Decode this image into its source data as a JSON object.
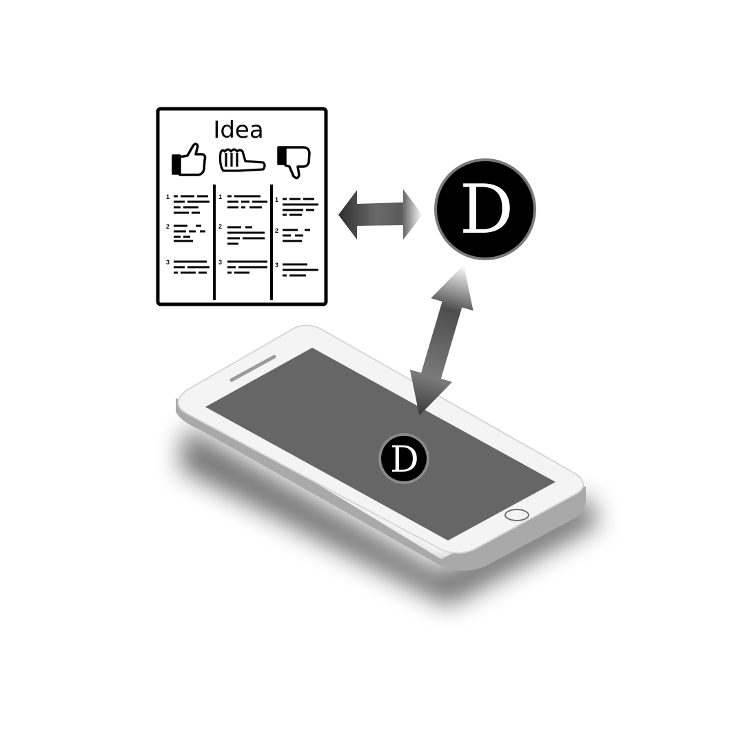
{
  "card": {
    "title": "Idea",
    "columns": [
      {
        "icon": "thumbs-up-icon",
        "rows": [
          "1",
          "2",
          "3"
        ]
      },
      {
        "icon": "thumbs-sideways-icon",
        "rows": [
          "1",
          "2",
          "3"
        ]
      },
      {
        "icon": "thumbs-down-icon",
        "rows": [
          "1",
          "2",
          "3"
        ]
      }
    ]
  },
  "logo": {
    "letter": "D"
  },
  "phone_logo": {
    "letter": "D"
  },
  "colors": {
    "ink": "#000000",
    "screen": "#666666",
    "phone_body": "#f2f2f2",
    "arrow_dark": "#3a3a3a",
    "arrow_light": "#ffffff"
  }
}
